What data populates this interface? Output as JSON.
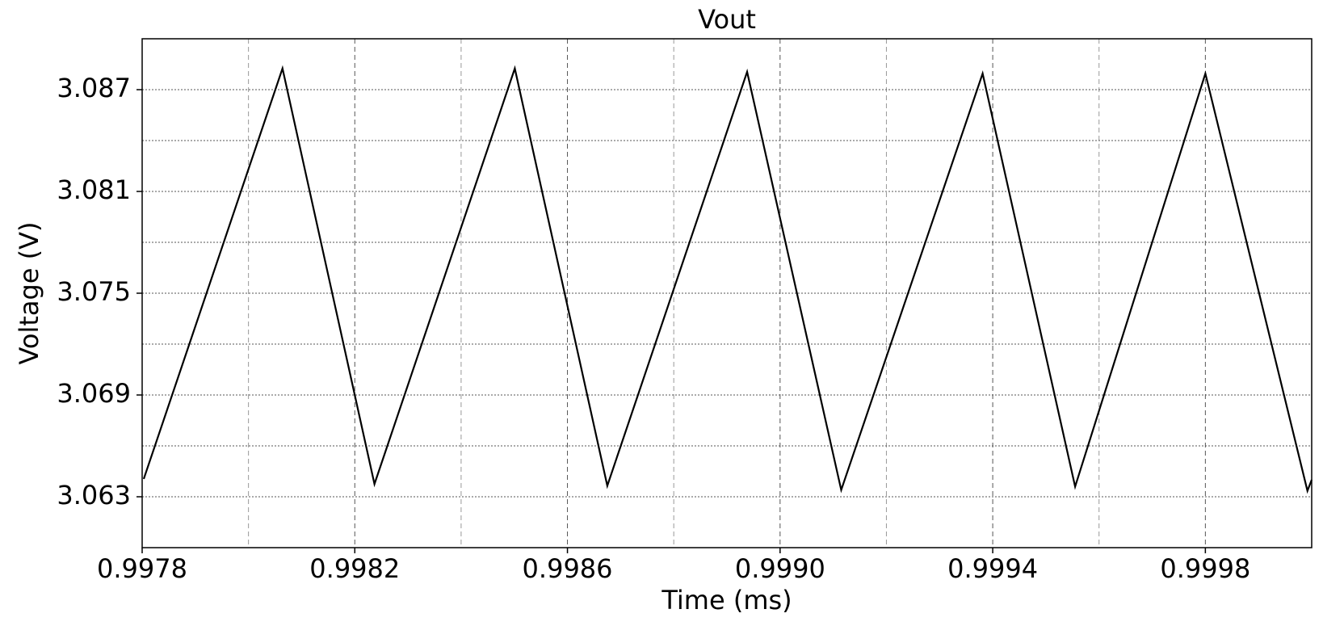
{
  "chart_data": {
    "type": "line",
    "title": "Vout",
    "x_label": "Time (ms)",
    "y_label": "Voltage (V)",
    "x": [
      0.997803,
      0.998064,
      0.998237,
      0.998501,
      0.998675,
      0.998938,
      0.999115,
      0.999381,
      0.999555,
      0.9998,
      0.999992,
      1.0
    ],
    "series": [
      {
        "name": "Vout",
        "color": "#000000",
        "values": [
          3.06405,
          3.08825,
          3.06375,
          3.08825,
          3.06365,
          3.08805,
          3.0634,
          3.08795,
          3.0636,
          3.08795,
          3.06335,
          3.064
        ]
      }
    ],
    "xlim": [
      0.9978,
      1.0
    ],
    "xticks": [
      0.9978,
      0.9982,
      0.9986,
      {
        "value": 0.999,
        "label": "0.9990"
      },
      0.9994,
      0.9998
    ],
    "xminorticks": [
      0.998,
      0.9984,
      0.9988,
      0.9992,
      0.9996,
      1.0
    ],
    "ylim": [
      3.06,
      3.09
    ],
    "yticks": [
      3.063,
      3.069,
      3.075,
      3.081,
      3.087
    ],
    "yminorticks": [
      3.066,
      3.072,
      3.078,
      3.084
    ],
    "grid": true
  }
}
